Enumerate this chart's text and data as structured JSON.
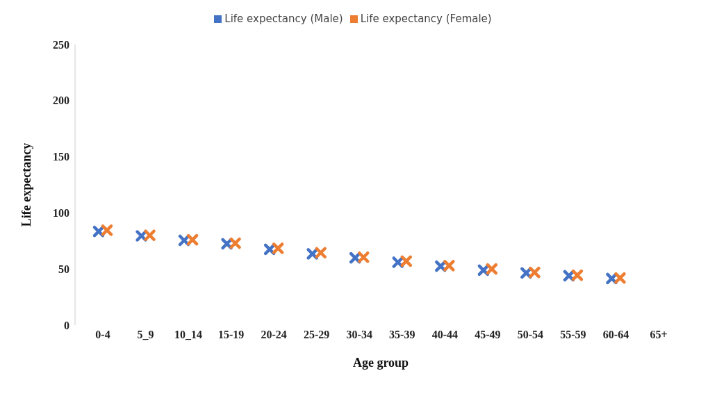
{
  "chart_data": {
    "type": "scatter",
    "xlabel": "Age group",
    "ylabel": "Life expectancy",
    "categories": [
      "0-4",
      "5_9",
      "10_14",
      "15-19",
      "20-24",
      "25-29",
      "30-34",
      "35-39",
      "40-44",
      "45-49",
      "50-54",
      "55-59",
      "60-64",
      "65+"
    ],
    "series": [
      {
        "name": "Life expectancy (Male)",
        "color": "#4472c4",
        "values": [
          83.5,
          79.5,
          75.5,
          72.5,
          67.5,
          63.5,
          60,
          56,
          52.5,
          49,
          46.5,
          44,
          41.5,
          null
        ]
      },
      {
        "name": "Life expectancy (Female)",
        "color": "#ed7d31",
        "values": [
          84.5,
          80,
          76,
          73,
          68.5,
          64.5,
          60.5,
          57,
          53,
          50,
          47,
          44.5,
          42,
          null
        ]
      }
    ],
    "ylim": [
      0,
      250
    ],
    "yticks": [
      0,
      50,
      100,
      150,
      200,
      250
    ],
    "grid": false,
    "legend": "top",
    "marker": "cross"
  }
}
